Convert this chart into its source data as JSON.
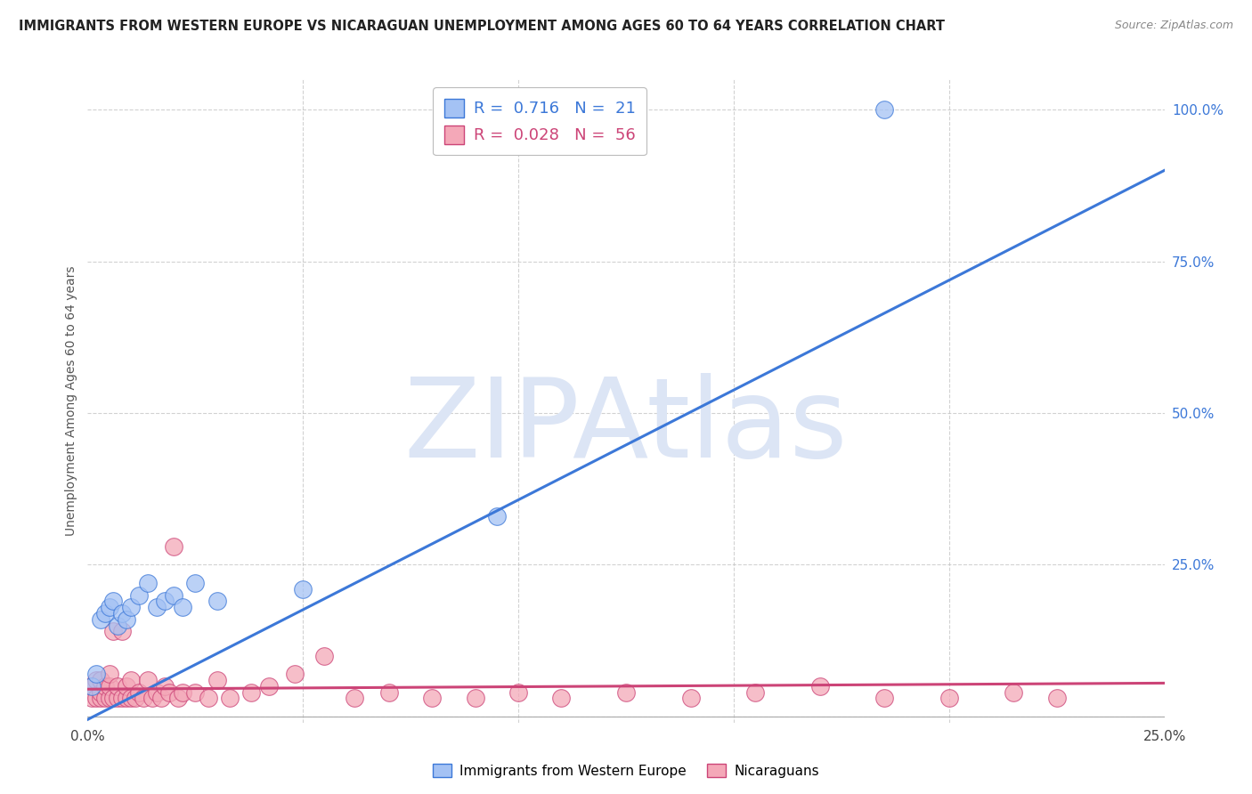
{
  "title": "IMMIGRANTS FROM WESTERN EUROPE VS NICARAGUAN UNEMPLOYMENT AMONG AGES 60 TO 64 YEARS CORRELATION CHART",
  "source": "Source: ZipAtlas.com",
  "ylabel": "Unemployment Among Ages 60 to 64 years",
  "xlim": [
    0.0,
    0.25
  ],
  "ylim": [
    -0.01,
    1.05
  ],
  "xticks": [
    0.0,
    0.05,
    0.1,
    0.15,
    0.2,
    0.25
  ],
  "xtick_labels": [
    "0.0%",
    "",
    "",
    "",
    "",
    "25.0%"
  ],
  "yticks": [
    0.0,
    0.25,
    0.5,
    0.75,
    1.0
  ],
  "ytick_labels": [
    "",
    "25.0%",
    "50.0%",
    "75.0%",
    "100.0%"
  ],
  "blue_R": 0.716,
  "blue_N": 21,
  "pink_R": 0.028,
  "pink_N": 56,
  "blue_color": "#a4c2f4",
  "pink_color": "#f4a8b8",
  "blue_edge_color": "#3c78d8",
  "pink_edge_color": "#cc4477",
  "blue_line_color": "#3c78d8",
  "pink_line_color": "#cc4477",
  "background_color": "#ffffff",
  "grid_color": "#c0c0c0",
  "watermark": "ZIPAtlas",
  "watermark_color": "#dce5f5",
  "title_fontsize": 10.5,
  "source_fontsize": 9,
  "blue_scatter_x": [
    0.001,
    0.002,
    0.003,
    0.004,
    0.005,
    0.006,
    0.007,
    0.008,
    0.009,
    0.01,
    0.012,
    0.014,
    0.016,
    0.018,
    0.02,
    0.022,
    0.025,
    0.03,
    0.05,
    0.095,
    0.185
  ],
  "blue_scatter_y": [
    0.05,
    0.07,
    0.16,
    0.17,
    0.18,
    0.19,
    0.15,
    0.17,
    0.16,
    0.18,
    0.2,
    0.22,
    0.18,
    0.19,
    0.2,
    0.18,
    0.22,
    0.19,
    0.21,
    0.33,
    1.0
  ],
  "pink_scatter_x": [
    0.001,
    0.001,
    0.002,
    0.002,
    0.003,
    0.003,
    0.003,
    0.004,
    0.004,
    0.005,
    0.005,
    0.005,
    0.006,
    0.006,
    0.007,
    0.007,
    0.008,
    0.008,
    0.009,
    0.009,
    0.01,
    0.01,
    0.011,
    0.012,
    0.013,
    0.014,
    0.015,
    0.016,
    0.017,
    0.018,
    0.019,
    0.02,
    0.021,
    0.022,
    0.025,
    0.028,
    0.03,
    0.033,
    0.038,
    0.042,
    0.048,
    0.055,
    0.062,
    0.07,
    0.08,
    0.09,
    0.1,
    0.11,
    0.125,
    0.14,
    0.155,
    0.17,
    0.185,
    0.2,
    0.215,
    0.225
  ],
  "pink_scatter_y": [
    0.03,
    0.05,
    0.03,
    0.06,
    0.03,
    0.04,
    0.06,
    0.03,
    0.05,
    0.03,
    0.05,
    0.07,
    0.03,
    0.14,
    0.03,
    0.05,
    0.03,
    0.14,
    0.03,
    0.05,
    0.03,
    0.06,
    0.03,
    0.04,
    0.03,
    0.06,
    0.03,
    0.04,
    0.03,
    0.05,
    0.04,
    0.28,
    0.03,
    0.04,
    0.04,
    0.03,
    0.06,
    0.03,
    0.04,
    0.05,
    0.07,
    0.1,
    0.03,
    0.04,
    0.03,
    0.03,
    0.04,
    0.03,
    0.04,
    0.03,
    0.04,
    0.05,
    0.03,
    0.03,
    0.04,
    0.03
  ],
  "blue_line_x": [
    0.0,
    0.25
  ],
  "blue_line_y": [
    -0.005,
    0.9
  ],
  "pink_line_x": [
    0.0,
    0.25
  ],
  "pink_line_y": [
    0.045,
    0.055
  ],
  "legend_labels": [
    "Immigrants from Western Europe",
    "Nicaraguans"
  ]
}
